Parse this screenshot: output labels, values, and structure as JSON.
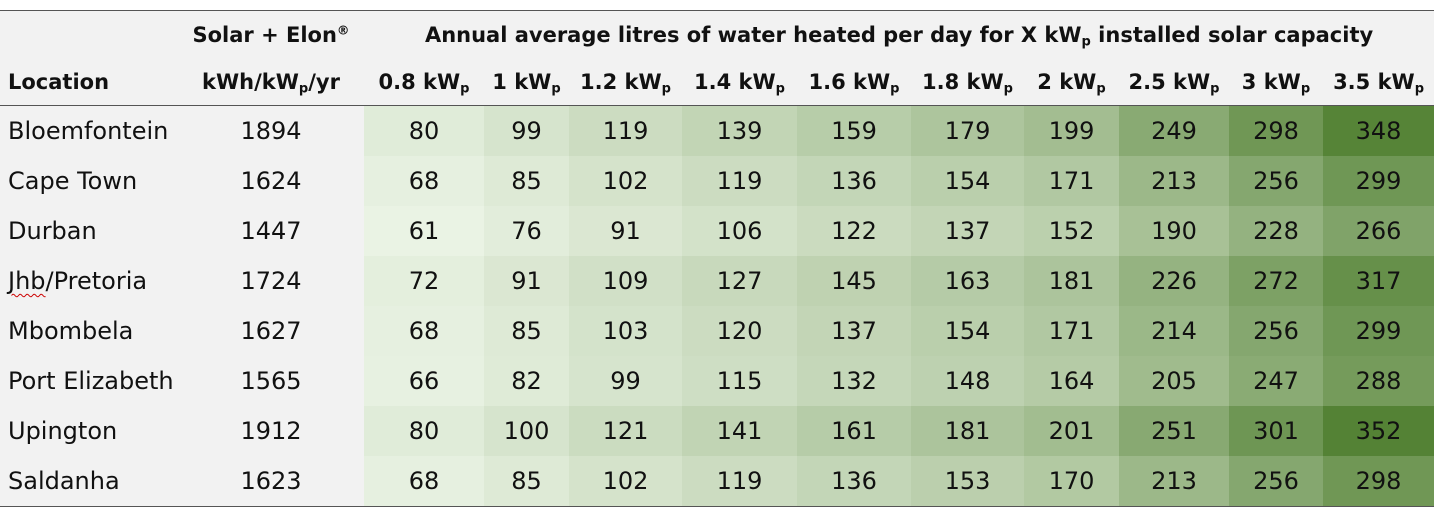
{
  "table": {
    "header": {
      "location_label": "Location",
      "yield_label_line1": "Solar + Elon",
      "yield_label_registered": "®",
      "yield_label_line2_a": "kWh/kW",
      "yield_label_line2_sub": "p",
      "yield_label_line2_b": "/yr",
      "span_title_a": "Annual average litres of water heated per day for X kW",
      "span_title_sub": "p",
      "span_title_b": " installed solar capacity",
      "capacity_unit_main": "kW",
      "capacity_unit_sub": "p",
      "capacities": [
        "0.8",
        "1",
        "1.2",
        "1.4",
        "1.6",
        "1.8",
        "2",
        "2.5",
        "3",
        "3.5"
      ]
    },
    "rows": [
      {
        "location": "Bloemfontein",
        "yield": "1894",
        "values": [
          "80",
          "99",
          "119",
          "139",
          "159",
          "179",
          "199",
          "249",
          "298",
          "348"
        ]
      },
      {
        "location": "Cape Town",
        "yield": "1624",
        "values": [
          "68",
          "85",
          "102",
          "119",
          "136",
          "154",
          "171",
          "213",
          "256",
          "299"
        ]
      },
      {
        "location": "Durban",
        "yield": "1447",
        "values": [
          "61",
          "76",
          "91",
          "106",
          "122",
          "137",
          "152",
          "190",
          "228",
          "266"
        ]
      },
      {
        "location": "Jhb/Pretoria",
        "location_prefix": "Jhb",
        "location_suffix": "/Pretoria",
        "yield": "1724",
        "values": [
          "72",
          "91",
          "109",
          "127",
          "145",
          "163",
          "181",
          "226",
          "272",
          "317"
        ]
      },
      {
        "location": "Mbombela",
        "yield": "1627",
        "values": [
          "68",
          "85",
          "103",
          "120",
          "137",
          "154",
          "171",
          "214",
          "256",
          "299"
        ]
      },
      {
        "location": "Port Elizabeth",
        "yield": "1565",
        "values": [
          "66",
          "82",
          "99",
          "115",
          "132",
          "148",
          "164",
          "205",
          "247",
          "288"
        ]
      },
      {
        "location": "Upington",
        "yield": "1912",
        "values": [
          "80",
          "100",
          "121",
          "141",
          "161",
          "181",
          "201",
          "251",
          "301",
          "352"
        ]
      },
      {
        "location": "Saldanha",
        "yield": "1623",
        "values": [
          "68",
          "85",
          "102",
          "119",
          "136",
          "153",
          "170",
          "213",
          "256",
          "298"
        ]
      }
    ],
    "heatmap_colors": {
      "low": "#eaf3e4",
      "high": "#548235",
      "min_value": 61,
      "max_value": 352
    }
  }
}
